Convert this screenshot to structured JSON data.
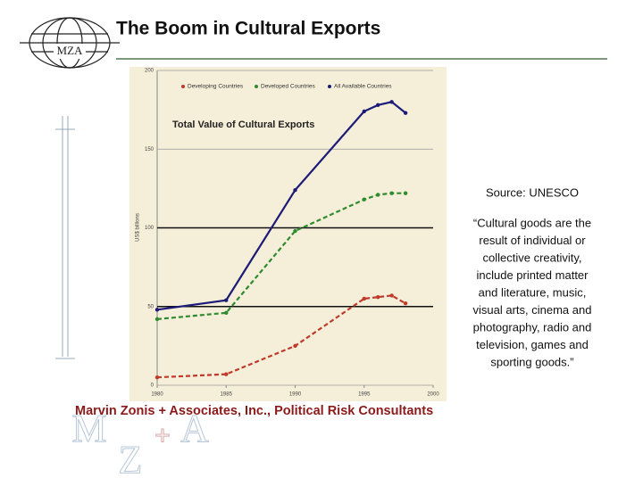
{
  "slide_title": "The Boom in Cultural Exports",
  "logo": "MZA",
  "chart_data": {
    "type": "line",
    "title": "Total Value of Cultural Exports",
    "ylabel": "US$ billions",
    "x": [
      1980,
      1985,
      1990,
      1995,
      1996,
      1997,
      1998
    ],
    "series": [
      {
        "name": "Developing Countries",
        "color": "#c0392b",
        "dash": true,
        "values": [
          5,
          7,
          25,
          55,
          56,
          57,
          52
        ]
      },
      {
        "name": "Developed Countries",
        "color": "#2e8b2e",
        "dash": true,
        "values": [
          42,
          46,
          98,
          118,
          121,
          122,
          122
        ]
      },
      {
        "name": "All Available Countries",
        "color": "#1c1c78",
        "dash": false,
        "values": [
          48,
          54,
          124,
          174,
          178,
          180,
          173
        ]
      }
    ],
    "xlim": [
      1980,
      2000
    ],
    "xticks": [
      1980,
      1985,
      1990,
      1995,
      2000
    ],
    "ylim": [
      0,
      200
    ],
    "yticks": [
      0,
      50,
      100,
      150,
      200
    ],
    "grid": true
  },
  "source": "Source: UNESCO",
  "quote_lines": [
    "“Cultural goods are the",
    "result of individual or",
    "collective creativity,",
    "include printed matter",
    "and literature, music,",
    "visual arts, cinema and",
    "photography, radio and",
    "television, games and",
    "sporting goods.”"
  ],
  "footer": "Marvin Zonis + Associates, Inc., Political Risk Consultants",
  "footer_logo": [
    "M",
    "Z",
    "A"
  ]
}
